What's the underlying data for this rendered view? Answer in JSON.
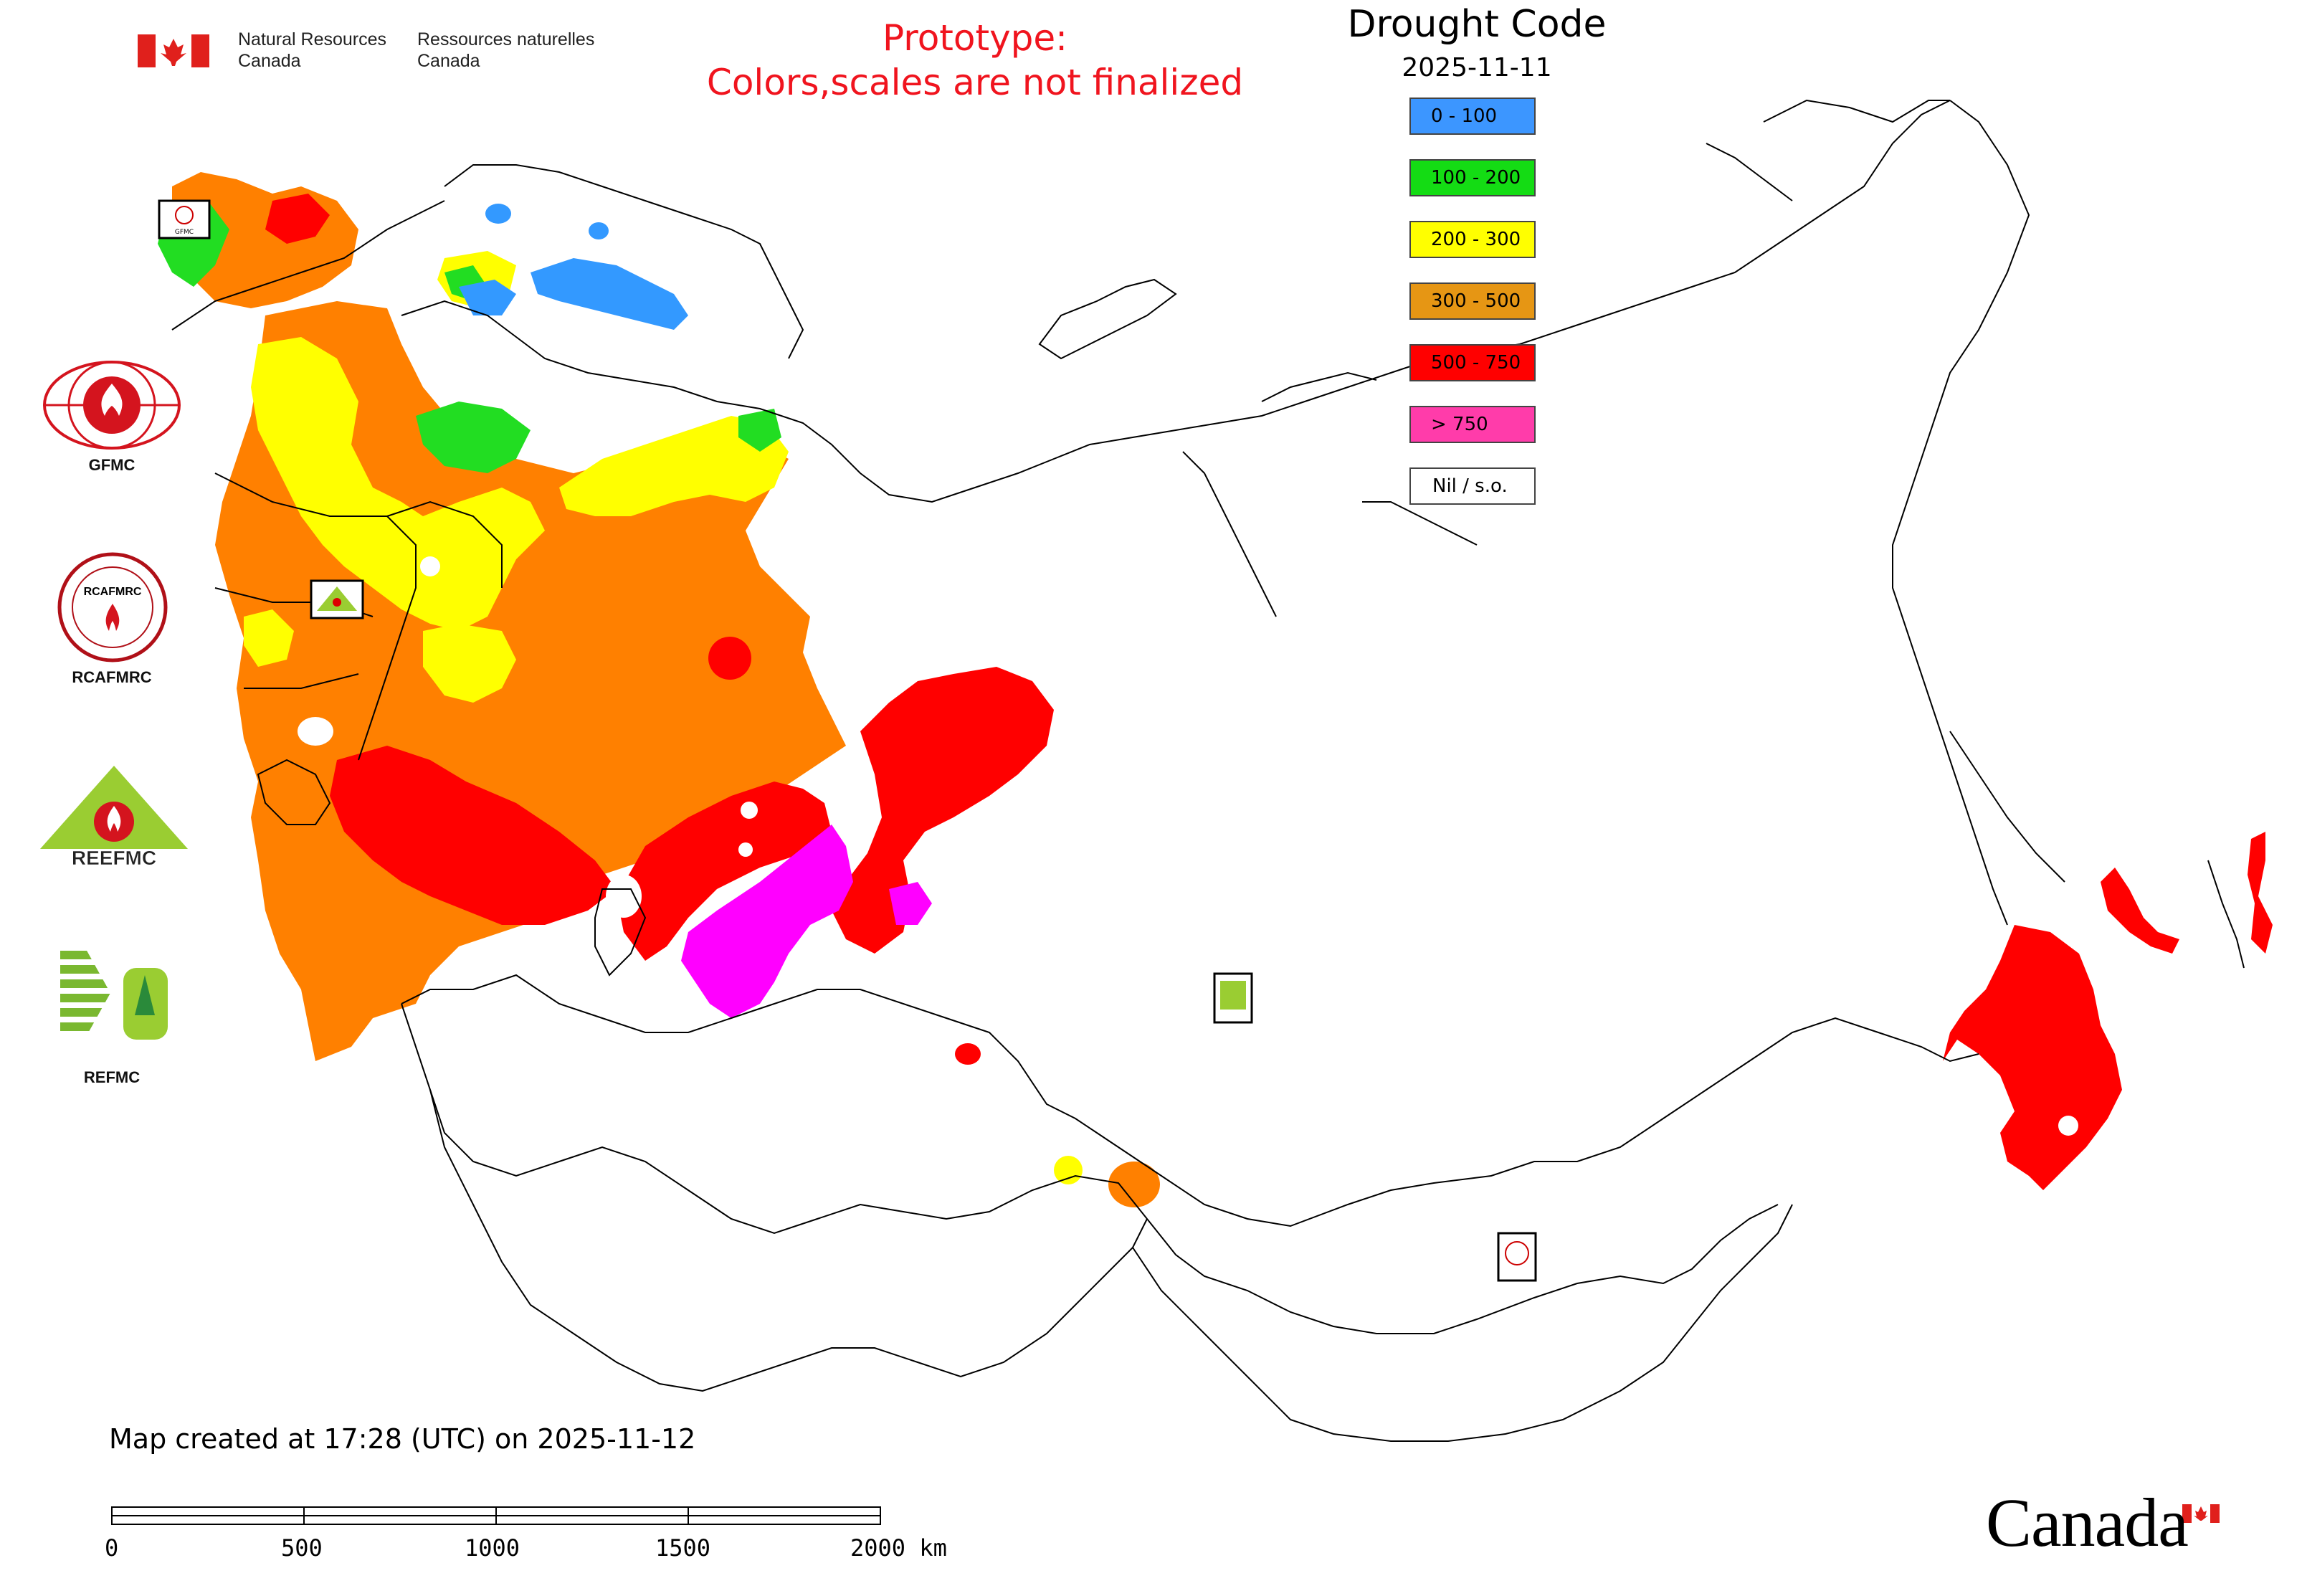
{
  "header": {
    "agency_en": [
      "Natural Resources",
      "Canada"
    ],
    "agency_fr": [
      "Ressources naturelles",
      "Canada"
    ],
    "prototype_line1": "Prototype:",
    "prototype_line2": "Colors,scales are not finalized"
  },
  "legend": {
    "title": "Drought Code",
    "date": "2025-11-11",
    "items": [
      {
        "label": "0 - 100",
        "color": "#3c96ff"
      },
      {
        "label": "100 - 200",
        "color": "#14dc14"
      },
      {
        "label": "200 - 300",
        "color": "#ffff00"
      },
      {
        "label": "300 - 500",
        "color": "#e69614"
      },
      {
        "label": "500 - 750",
        "color": "#ff0000"
      },
      {
        "label": "> 750",
        "color": "#ff3caa"
      },
      {
        "label": "Nil / s.o.",
        "color": "#ffffff"
      }
    ]
  },
  "logos": {
    "gfmc": "GFMC",
    "rcafmrc": "RCAFMRC",
    "reefmc": "REEFMC",
    "refmc": "REFMC",
    "map_badge_gfmc": "GFMC",
    "map_badge_reefmc": "REEFMC",
    "map_badge_refmc": "REFMC",
    "map_badge_rcafmrc": "RCAFMRC"
  },
  "footer": {
    "created": "Map created at 17:28 (UTC) on 2025-11-12",
    "scale_labels": [
      "0",
      "500",
      "1000",
      "1500",
      "2000 km"
    ],
    "wordmark": "Canada"
  },
  "colors": {
    "orange": "#ff8000",
    "red": "#ff0000",
    "magenta": "#ff00ff",
    "yellow": "#ffff00",
    "green": "#22dd22",
    "blue": "#3399ff",
    "outline": "#000000"
  }
}
